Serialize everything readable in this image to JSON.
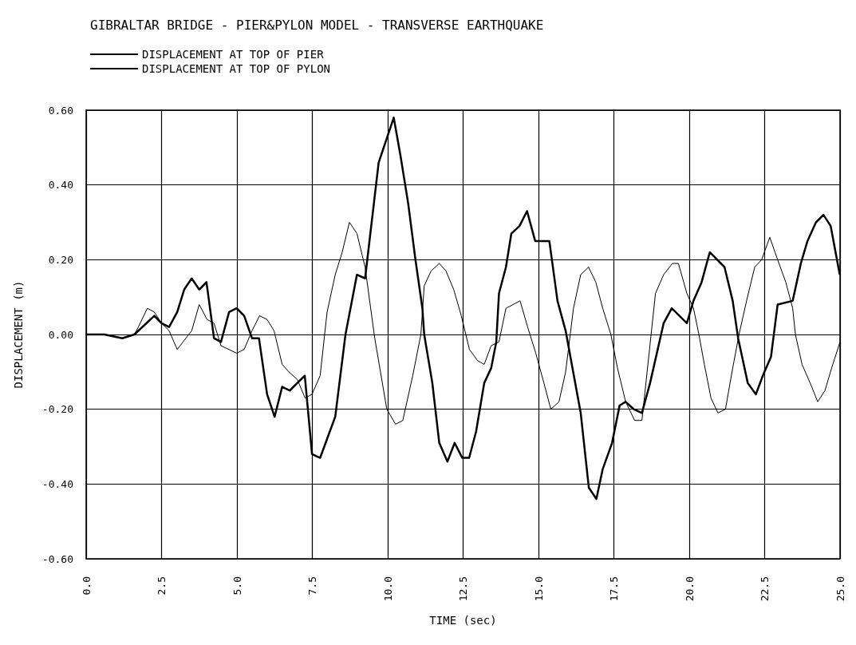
{
  "chart_data": {
    "type": "line",
    "title": "GIBRALTAR BRIDGE - PIER&PYLON MODEL - TRANSVERSE EARTHQUAKE",
    "xlabel": "TIME (sec)",
    "ylabel": "DISPLACEMENT (m)",
    "legend": "top left",
    "grid": true,
    "marker": "none",
    "line_style": "solid",
    "xlim": [
      0,
      25
    ],
    "xticks": [
      {
        "value": 0,
        "label": "0.0"
      },
      2.5,
      {
        "value": 5,
        "label": "5.0"
      },
      7.5,
      {
        "value": 10,
        "label": "10.0"
      },
      12.5,
      {
        "value": 15,
        "label": "15.0"
      },
      17.5,
      {
        "value": 20,
        "label": "20.0"
      },
      22.5,
      {
        "value": 25,
        "label": "25.0"
      }
    ],
    "ylim": [
      -0.6,
      0.6
    ],
    "yticks": [
      {
        "value": -0.6,
        "label": "-0.60"
      },
      {
        "value": -0.4,
        "label": "-0.40"
      },
      {
        "value": -0.2,
        "label": "-0.20"
      },
      {
        "value": 0,
        "label": "0.00"
      },
      {
        "value": 0.2,
        "label": "0.20"
      },
      {
        "value": 0.4,
        "label": "0.40"
      },
      {
        "value": 0.6,
        "label": "0.60"
      }
    ],
    "series": [
      {
        "name": "DISPLACEMENT AT TOP OF PIER",
        "color": "#000000",
        "x": [
          0,
          0.6,
          1.2,
          1.6,
          1.73,
          2.03,
          2.26,
          2.5,
          2.75,
          3.02,
          3.5,
          3.75,
          4.01,
          4.24,
          4.47,
          4.99,
          5.24,
          5.5,
          5.75,
          6.0,
          6.23,
          6.5,
          6.72,
          7.0,
          7.26,
          7.49,
          7.76,
          7.99,
          8.26,
          8.49,
          8.73,
          8.98,
          9.25,
          9.57,
          9.97,
          10.26,
          10.5,
          10.83,
          11.1,
          11.21,
          11.44,
          11.71,
          11.93,
          12.19,
          12.44,
          12.71,
          12.98,
          13.2,
          13.43,
          13.69,
          13.92,
          14.39,
          14.64,
          14.91,
          15.18,
          15.41,
          15.68,
          15.9,
          16.16,
          16.4,
          16.66,
          16.9,
          17.13,
          17.4,
          17.62,
          17.89,
          18.19,
          18.43,
          18.88,
          19.15,
          19.44,
          19.64,
          19.92,
          20.14,
          20.32,
          20.5,
          20.72,
          20.95,
          21.2,
          21.44,
          21.65,
          21.9,
          22.17,
          22.4,
          22.67,
          22.93,
          23.2,
          23.43,
          23.52,
          23.74,
          24.01,
          24.26,
          24.5,
          24.72,
          25.0
        ],
        "values": [
          0,
          0,
          -0.01,
          0,
          0.02,
          0.07,
          0.06,
          0.03,
          0.01,
          -0.04,
          0.01,
          0.08,
          0.04,
          0.03,
          -0.03,
          -0.05,
          -0.04,
          0.01,
          0.05,
          0.04,
          0.01,
          -0.08,
          -0.1,
          -0.12,
          -0.17,
          -0.16,
          -0.11,
          0.06,
          0.16,
          0.22,
          0.3,
          0.27,
          0.18,
          -0.01,
          -0.2,
          -0.24,
          -0.23,
          -0.11,
          0,
          0.13,
          0.17,
          0.19,
          0.17,
          0.12,
          0.05,
          -0.04,
          -0.07,
          -0.08,
          -0.03,
          -0.02,
          0.07,
          0.09,
          0.02,
          -0.05,
          -0.13,
          -0.2,
          -0.18,
          -0.1,
          0.07,
          0.16,
          0.18,
          0.14,
          0.07,
          0,
          -0.09,
          -0.18,
          -0.23,
          -0.23,
          0.11,
          0.16,
          0.19,
          0.19,
          0.11,
          0.07,
          0,
          -0.08,
          -0.17,
          -0.21,
          -0.2,
          -0.09,
          0,
          0.09,
          0.18,
          0.2,
          0.26,
          0.2,
          0.14,
          0.07,
          0,
          -0.08,
          -0.13,
          -0.18,
          -0.15,
          -0.09,
          -0.02
        ]
      },
      {
        "name": "DISPLACEMENT AT TOP OF PYLON",
        "color": "#000000",
        "x": [
          0,
          0.6,
          1.2,
          1.6,
          2.26,
          2.5,
          2.75,
          3.02,
          3.25,
          3.5,
          3.75,
          3.99,
          4.24,
          4.47,
          4.74,
          4.99,
          5.24,
          5.5,
          5.73,
          6.0,
          6.25,
          6.5,
          6.75,
          7.0,
          7.25,
          7.49,
          7.76,
          8.26,
          8.6,
          8.98,
          9.25,
          9.7,
          10.2,
          10.42,
          10.68,
          10.92,
          11.15,
          11.21,
          11.48,
          11.71,
          11.98,
          12.22,
          12.47,
          12.7,
          12.93,
          13.2,
          13.43,
          13.6,
          13.69,
          13.92,
          14.1,
          14.37,
          14.62,
          14.89,
          15.36,
          15.63,
          15.9,
          16.4,
          16.67,
          16.92,
          17.13,
          17.44,
          17.69,
          17.89,
          18.16,
          18.43,
          18.7,
          19.15,
          19.42,
          19.92,
          20.14,
          20.41,
          20.68,
          21.17,
          21.44,
          21.62,
          21.94,
          22.21,
          22.44,
          22.71,
          22.93,
          23.43,
          23.7,
          23.92,
          24.2,
          24.45,
          24.69,
          24.99
        ],
        "values": [
          0,
          0,
          -0.01,
          0,
          0.05,
          0.03,
          0.02,
          0.06,
          0.12,
          0.15,
          0.12,
          0.14,
          -0.01,
          -0.02,
          0.06,
          0.07,
          0.05,
          -0.01,
          -0.01,
          -0.16,
          -0.22,
          -0.14,
          -0.15,
          -0.13,
          -0.11,
          -0.32,
          -0.33,
          -0.22,
          0,
          0.16,
          0.15,
          0.46,
          0.58,
          0.48,
          0.35,
          0.2,
          0.07,
          0,
          -0.13,
          -0.29,
          -0.34,
          -0.29,
          -0.33,
          -0.33,
          -0.26,
          -0.13,
          -0.09,
          -0.02,
          0.11,
          0.18,
          0.27,
          0.29,
          0.33,
          0.25,
          0.25,
          0.09,
          0.01,
          -0.21,
          -0.41,
          -0.44,
          -0.36,
          -0.29,
          -0.19,
          -0.18,
          -0.2,
          -0.21,
          -0.13,
          0.03,
          0.07,
          0.03,
          0.09,
          0.14,
          0.22,
          0.18,
          0.09,
          -0.01,
          -0.13,
          -0.16,
          -0.11,
          -0.06,
          0.08,
          0.09,
          0.19,
          0.25,
          0.3,
          0.32,
          0.29,
          0.16
        ]
      }
    ]
  }
}
